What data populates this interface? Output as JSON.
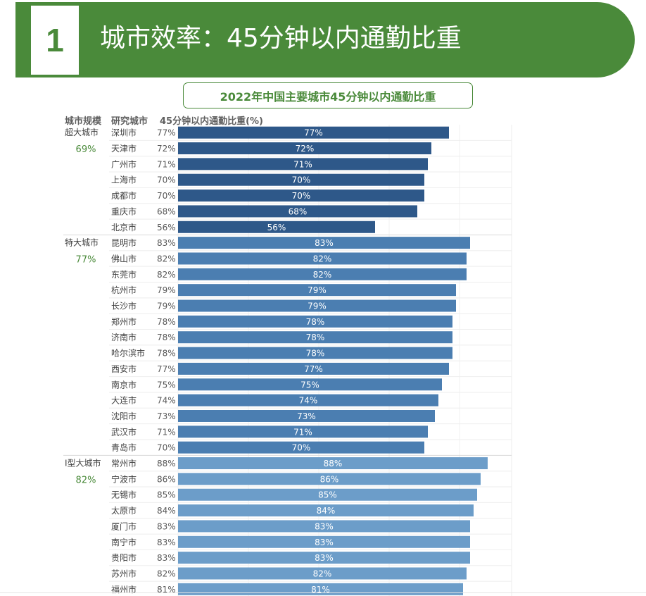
{
  "header": {
    "number": "1",
    "title": "城市效率：45分钟以内通勤比重"
  },
  "columns": {
    "scale": "城市规模",
    "city": "研究城市",
    "value": "45分钟以内通勤比重(%)"
  },
  "colors": {
    "accent": "#4a8a3a",
    "group1": "#2e5889",
    "group2": "#4b7eb1",
    "group3": "#6c9dc9"
  },
  "chart_data": {
    "type": "bar",
    "orientation": "horizontal",
    "title": "2022年中国主要城市45分钟以内通勤比重",
    "xlim": [
      0,
      100
    ],
    "unit": "%",
    "groups": [
      {
        "name": "超大城市",
        "average": "69%",
        "color": "#2e5889",
        "categories": [
          "深圳市",
          "天津市",
          "广州市",
          "上海市",
          "成都市",
          "重庆市",
          "北京市"
        ],
        "values": [
          77,
          72,
          71,
          70,
          70,
          68,
          56
        ]
      },
      {
        "name": "特大城市",
        "average": "77%",
        "color": "#4b7eb1",
        "categories": [
          "昆明市",
          "佛山市",
          "东莞市",
          "杭州市",
          "长沙市",
          "郑州市",
          "济南市",
          "哈尔滨市",
          "西安市",
          "南京市",
          "大连市",
          "沈阳市",
          "武汉市",
          "青岛市"
        ],
        "values": [
          83,
          82,
          82,
          79,
          79,
          78,
          78,
          78,
          77,
          75,
          74,
          73,
          71,
          70
        ]
      },
      {
        "name": "Ⅰ型大城市",
        "average": "82%",
        "color": "#6c9dc9",
        "categories": [
          "常州市",
          "宁波市",
          "无锡市",
          "太原市",
          "厦门市",
          "南宁市",
          "贵阳市",
          "苏州市",
          "福州市"
        ],
        "values": [
          88,
          86,
          85,
          84,
          83,
          83,
          83,
          82,
          81
        ]
      }
    ]
  }
}
